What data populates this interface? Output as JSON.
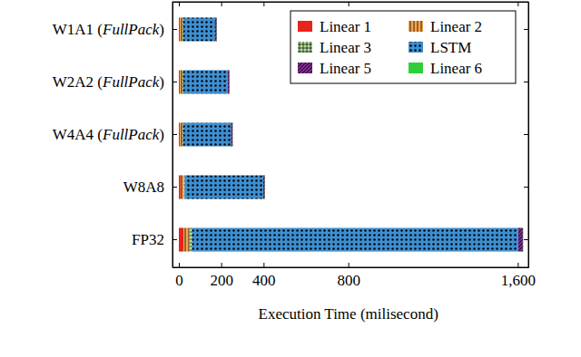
{
  "chart_data": {
    "type": "bar",
    "orientation": "horizontal",
    "stacked": true,
    "legend": "top-right",
    "xlabel": "Execution Time (milisecond)",
    "categories": [
      "W1A1 (FullPack)",
      "W2A2 (FullPack)",
      "W4A4 (FullPack)",
      "W8A8",
      "FP32"
    ],
    "series": [
      {
        "name": "Linear 1",
        "color": "#e8231c",
        "values": [
          5,
          5,
          5,
          8,
          22
        ]
      },
      {
        "name": "Linear 2",
        "color": "#f7a54a",
        "values": [
          12,
          12,
          12,
          15,
          28
        ]
      },
      {
        "name": "Linear 3",
        "color": "#b9e3a3",
        "values": [
          4,
          4,
          4,
          5,
          12
        ]
      },
      {
        "name": "LSTM",
        "color": "#3d8fd1",
        "values": [
          150,
          210,
          225,
          370,
          1540
        ]
      },
      {
        "name": "Linear 5",
        "color": "#7a2a8c",
        "values": [
          8,
          8,
          8,
          8,
          22
        ]
      },
      {
        "name": "Linear 6",
        "color": "#2fcf3a",
        "values": [
          1,
          1,
          1,
          1,
          2
        ]
      }
    ],
    "xlim": [
      -30,
      1650
    ],
    "xticks": [
      0,
      200,
      400,
      800,
      {
        "value": 1600,
        "label": "1,600"
      }
    ]
  }
}
